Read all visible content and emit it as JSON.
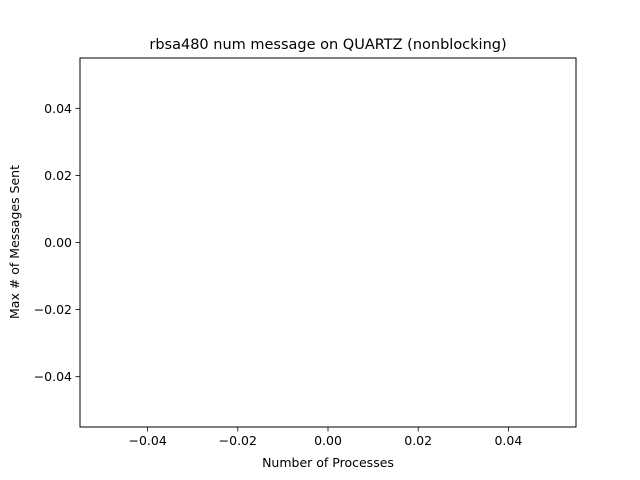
{
  "chart_data": {
    "type": "line",
    "title": "rbsa480 num message on QUARTZ (nonblocking)",
    "xlabel": "Number of Processes",
    "ylabel": "Max # of Messages Sent",
    "xlim": [
      -0.055,
      0.055
    ],
    "ylim": [
      -0.055,
      0.055
    ],
    "xticks": [
      -0.04,
      -0.02,
      0.0,
      0.02,
      0.04
    ],
    "xtick_labels": [
      "−0.04",
      "−0.02",
      "0.00",
      "0.02",
      "0.04"
    ],
    "yticks": [
      -0.04,
      -0.02,
      0.0,
      0.02,
      0.04
    ],
    "ytick_labels": [
      "−0.04",
      "−0.02",
      "0.00",
      "0.02",
      "0.04"
    ],
    "grid": false,
    "series": []
  }
}
